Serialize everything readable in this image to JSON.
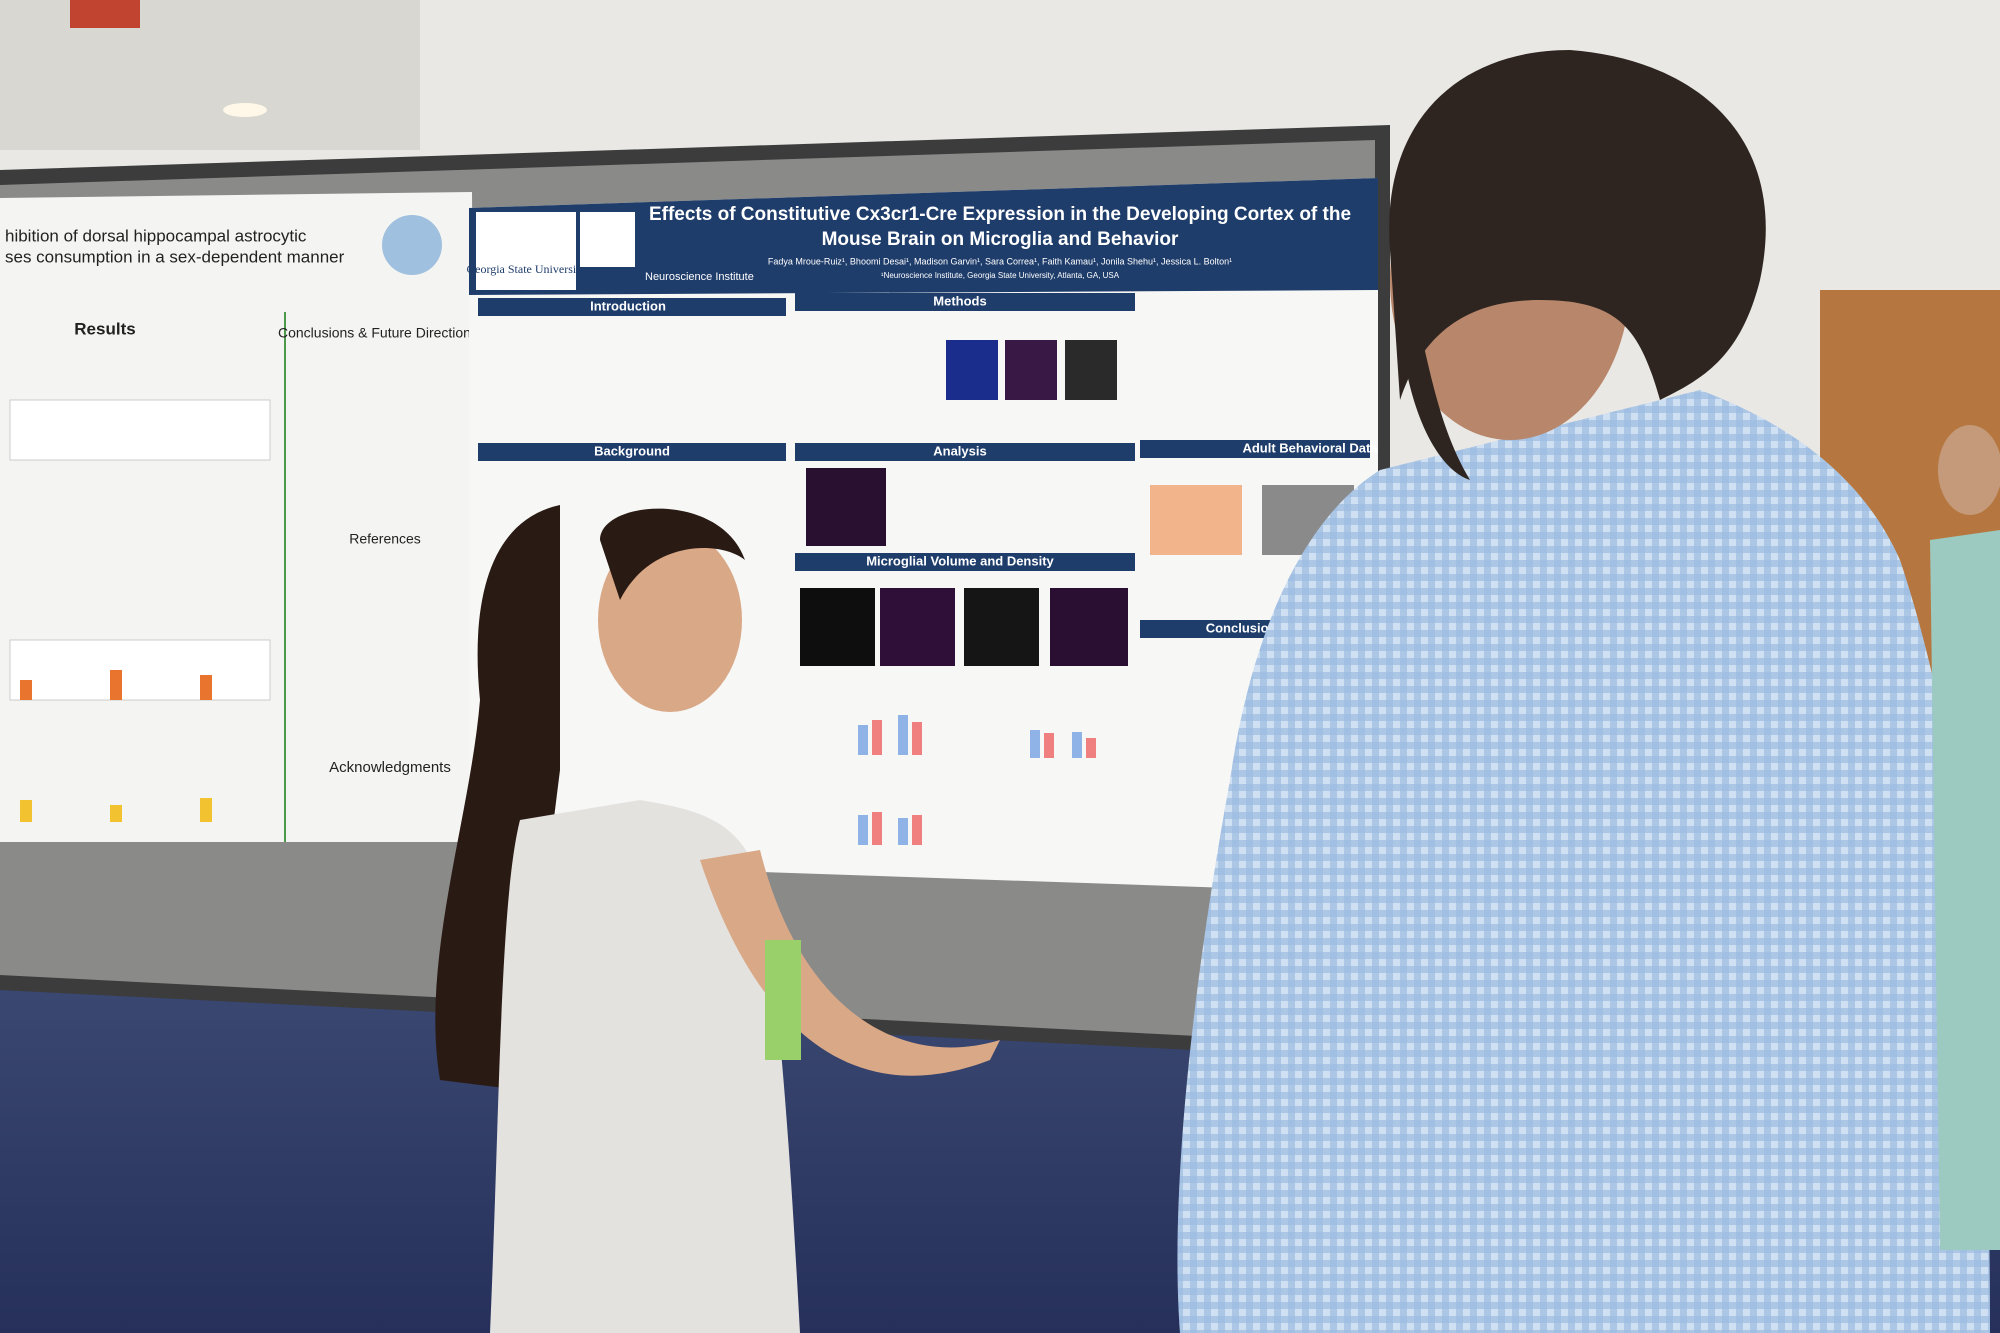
{
  "left_poster": {
    "title_line1": "hibition of dorsal hippocampal astrocytic",
    "title_line2": "ses consumption in a sex-dependent manner",
    "sections": [
      "Results",
      "Conclusions & Future Directions",
      "References",
      "Acknowledgments"
    ]
  },
  "right_poster": {
    "title_line1": "Effects of Constitutive Cx3cr1-Cre Expression in the Developing Cortex of the",
    "title_line2": "Mouse Brain on Microglia and Behavior",
    "authors": "Fadya Mroue-Ruiz¹, Bhoomi Desai¹, Madison Garvin¹, Sara Correa¹, Faith Kamau¹, Jonila Shehu¹, Jessica L. Bolton¹",
    "affiliation": "¹Neuroscience Institute, Georgia State University, Atlanta, GA, USA",
    "logo": "Georgia State University",
    "institute": "Neuroscience Institute",
    "sections": [
      "Introduction",
      "Methods",
      "Background",
      "Analysis",
      "Microglial Volume and Density",
      "Adult Behavioral Data",
      "Conclusions and Fut"
    ]
  }
}
